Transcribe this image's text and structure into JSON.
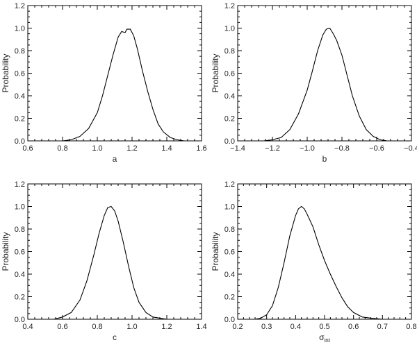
{
  "chart_data": [
    {
      "type": "line",
      "xlabel": "a",
      "ylabel": "Probability",
      "xlim": [
        0.6,
        1.6
      ],
      "ylim": [
        0.0,
        1.2
      ],
      "xticks": [
        "0.6",
        "0.8",
        "1.0",
        "1.2",
        "1.4",
        "1.6"
      ],
      "yticks": [
        "0.0",
        "0.2",
        "0.4",
        "0.6",
        "0.8",
        "1.0",
        "1.2"
      ],
      "series": [
        {
          "x": [
            0.8,
            0.85,
            0.9,
            0.95,
            1.0,
            1.03,
            1.06,
            1.09,
            1.12,
            1.14,
            1.16,
            1.17,
            1.19,
            1.21,
            1.23,
            1.26,
            1.29,
            1.32,
            1.35,
            1.38,
            1.42,
            1.46,
            1.5,
            1.55
          ],
          "y": [
            0.0,
            0.01,
            0.04,
            0.11,
            0.25,
            0.4,
            0.58,
            0.76,
            0.92,
            0.97,
            0.96,
            0.99,
            0.99,
            0.93,
            0.82,
            0.62,
            0.44,
            0.28,
            0.15,
            0.08,
            0.03,
            0.01,
            0.0,
            0.0
          ]
        }
      ]
    },
    {
      "type": "line",
      "xlabel": "b",
      "ylabel": "Probability",
      "xlim": [
        -1.4,
        -0.4
      ],
      "ylim": [
        0.0,
        1.2
      ],
      "xticks": [
        "−1.4",
        "−1.2",
        "−1.0",
        "−0.8",
        "−0.6",
        "−0.4"
      ],
      "yticks": [
        "0.0",
        "0.2",
        "0.4",
        "0.6",
        "0.8",
        "1.0",
        "1.2"
      ],
      "series": [
        {
          "x": [
            -1.25,
            -1.2,
            -1.15,
            -1.1,
            -1.05,
            -1.0,
            -0.97,
            -0.94,
            -0.91,
            -0.89,
            -0.87,
            -0.85,
            -0.83,
            -0.8,
            -0.77,
            -0.74,
            -0.7,
            -0.66,
            -0.62,
            -0.58,
            -0.54,
            -0.5
          ],
          "y": [
            0.0,
            0.01,
            0.03,
            0.1,
            0.24,
            0.45,
            0.62,
            0.8,
            0.94,
            0.99,
            1.0,
            0.95,
            0.89,
            0.76,
            0.58,
            0.4,
            0.22,
            0.1,
            0.04,
            0.01,
            0.0,
            0.0
          ]
        }
      ]
    },
    {
      "type": "line",
      "xlabel": "c",
      "ylabel": "Probability",
      "xlim": [
        0.4,
        1.4
      ],
      "ylim": [
        0.0,
        1.2
      ],
      "xticks": [
        "0.4",
        "0.6",
        "0.8",
        "1.0",
        "1.2",
        "1.4"
      ],
      "yticks": [
        "0.0",
        "0.2",
        "0.4",
        "0.6",
        "0.8",
        "1.0",
        "1.2"
      ],
      "series": [
        {
          "x": [
            0.55,
            0.6,
            0.65,
            0.7,
            0.74,
            0.78,
            0.81,
            0.84,
            0.86,
            0.88,
            0.9,
            0.92,
            0.95,
            0.98,
            1.01,
            1.04,
            1.08,
            1.12,
            1.16,
            1.2,
            1.25
          ],
          "y": [
            0.0,
            0.02,
            0.06,
            0.17,
            0.34,
            0.57,
            0.76,
            0.92,
            0.99,
            1.0,
            0.96,
            0.87,
            0.68,
            0.47,
            0.28,
            0.15,
            0.06,
            0.02,
            0.01,
            0.0,
            0.0
          ]
        }
      ]
    },
    {
      "type": "line",
      "xlabel": "σ",
      "xlabel_sub": "int",
      "ylabel": "Probability",
      "xlim": [
        0.2,
        0.8
      ],
      "ylim": [
        0.0,
        1.2
      ],
      "xticks": [
        "0.2",
        "0.3",
        "0.4",
        "0.5",
        "0.6",
        "0.7",
        "0.8"
      ],
      "yticks": [
        "0.0",
        "0.2",
        "0.4",
        "0.6",
        "0.8",
        "1.0",
        "1.2"
      ],
      "series": [
        {
          "x": [
            0.26,
            0.28,
            0.3,
            0.32,
            0.34,
            0.36,
            0.38,
            0.4,
            0.41,
            0.42,
            0.43,
            0.44,
            0.46,
            0.48,
            0.5,
            0.52,
            0.54,
            0.56,
            0.58,
            0.6,
            0.63,
            0.66,
            0.7,
            0.75
          ],
          "y": [
            0.0,
            0.01,
            0.04,
            0.12,
            0.28,
            0.5,
            0.74,
            0.92,
            0.98,
            1.0,
            0.98,
            0.93,
            0.82,
            0.66,
            0.52,
            0.4,
            0.29,
            0.19,
            0.11,
            0.06,
            0.02,
            0.01,
            0.0,
            0.0
          ]
        }
      ]
    }
  ]
}
